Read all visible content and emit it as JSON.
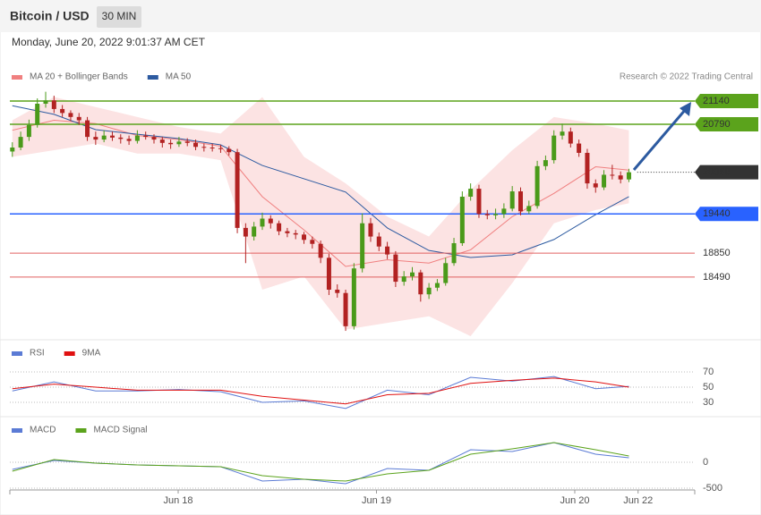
{
  "header": {
    "title": "Bitcoin / USD",
    "interval": "30 MIN",
    "datetime": "Monday, June 20, 2022 9:01:37 AM CET"
  },
  "chart_data": [
    {
      "type": "candlestick",
      "annotation": "Research © 2022 Trading Central",
      "up_color": "#4a9a1a",
      "down_color": "#b22222",
      "xlim": [
        -0.3,
        81.9
      ],
      "ylim": [
        17573,
        21719
      ],
      "candles": [
        [
          20380,
          20520,
          20300,
          20440
        ],
        [
          20440,
          20680,
          20400,
          20600
        ],
        [
          20600,
          20860,
          20540,
          20780
        ],
        [
          20780,
          21180,
          20740,
          21100
        ],
        [
          21100,
          21280,
          21040,
          21150
        ],
        [
          21150,
          21220,
          20960,
          21020
        ],
        [
          21020,
          21080,
          20900,
          20960
        ],
        [
          20960,
          21000,
          20840,
          20900
        ],
        [
          20900,
          20960,
          20780,
          20850
        ],
        [
          20850,
          20900,
          20540,
          20600
        ],
        [
          20600,
          20680,
          20480,
          20560
        ],
        [
          20560,
          20700,
          20520,
          20620
        ],
        [
          20620,
          20680,
          20540,
          20590
        ],
        [
          20590,
          20640,
          20500,
          20570
        ],
        [
          20570,
          20620,
          20480,
          20540
        ],
        [
          20540,
          20700,
          20500,
          20620
        ],
        [
          20620,
          20680,
          20560,
          20600
        ],
        [
          20600,
          20640,
          20500,
          20560
        ],
        [
          20560,
          20600,
          20440,
          20510
        ],
        [
          20510,
          20560,
          20420,
          20490
        ],
        [
          20490,
          20600,
          20450,
          20530
        ],
        [
          20530,
          20580,
          20460,
          20510
        ],
        [
          20510,
          20560,
          20400,
          20450
        ],
        [
          20450,
          20500,
          20380,
          20440
        ],
        [
          20440,
          20500,
          20380,
          20430
        ],
        [
          20430,
          20480,
          20360,
          20420
        ],
        [
          20420,
          20460,
          20320,
          20370
        ],
        [
          20370,
          20420,
          19150,
          19230
        ],
        [
          19230,
          19300,
          18700,
          19100
        ],
        [
          19100,
          19320,
          19040,
          19250
        ],
        [
          19250,
          19460,
          19200,
          19370
        ],
        [
          19370,
          19420,
          19220,
          19300
        ],
        [
          19300,
          19340,
          19120,
          19180
        ],
        [
          19180,
          19230,
          19090,
          19150
        ],
        [
          19150,
          19200,
          19060,
          19130
        ],
        [
          19130,
          19170,
          18990,
          19050
        ],
        [
          19050,
          19100,
          18920,
          18990
        ],
        [
          18990,
          19040,
          18700,
          18780
        ],
        [
          18780,
          18840,
          18220,
          18300
        ],
        [
          18300,
          18380,
          18180,
          18250
        ],
        [
          18250,
          18300,
          17680,
          17750
        ],
        [
          17750,
          18700,
          17700,
          18620
        ],
        [
          18620,
          19450,
          18560,
          19300
        ],
        [
          19300,
          19380,
          19020,
          19100
        ],
        [
          19100,
          19160,
          18880,
          18950
        ],
        [
          18950,
          19020,
          18760,
          18830
        ],
        [
          18830,
          18880,
          18340,
          18420
        ],
        [
          18420,
          18580,
          18360,
          18500
        ],
        [
          18500,
          18640,
          18440,
          18560
        ],
        [
          18560,
          18600,
          18120,
          18230
        ],
        [
          18230,
          18400,
          18160,
          18330
        ],
        [
          18330,
          18460,
          18280,
          18400
        ],
        [
          18400,
          18780,
          18360,
          18700
        ],
        [
          18700,
          19080,
          18660,
          19000
        ],
        [
          19000,
          19780,
          18960,
          19700
        ],
        [
          19700,
          19900,
          19640,
          19820
        ],
        [
          19820,
          19880,
          19380,
          19440
        ],
        [
          19440,
          19500,
          19360,
          19420
        ],
        [
          19420,
          19520,
          19360,
          19440
        ],
        [
          19440,
          19600,
          19380,
          19520
        ],
        [
          19520,
          19860,
          19480,
          19780
        ],
        [
          19780,
          19840,
          19420,
          19480
        ],
        [
          19480,
          19640,
          19440,
          19560
        ],
        [
          19560,
          20240,
          19520,
          20160
        ],
        [
          20160,
          20320,
          20100,
          20250
        ],
        [
          20250,
          20700,
          20200,
          20620
        ],
        [
          20620,
          20800,
          20560,
          20680
        ],
        [
          20680,
          20740,
          20440,
          20500
        ],
        [
          20500,
          20560,
          20300,
          20360
        ],
        [
          20360,
          20420,
          19820,
          19900
        ],
        [
          19900,
          19960,
          19760,
          19840
        ],
        [
          19840,
          20100,
          19800,
          20030
        ],
        [
          20030,
          20180,
          19960,
          20020
        ],
        [
          20020,
          20080,
          19900,
          19960
        ],
        [
          19960,
          20120,
          19920,
          20068
        ]
      ],
      "x": [
        0,
        5,
        10,
        15,
        20,
        25,
        30,
        35,
        40,
        45,
        50,
        55,
        60,
        65,
        70,
        74
      ],
      "series": [
        {
          "name": "MA 20 + Bollinger Bands",
          "color": "#f08080",
          "values": [
            20700,
            20850,
            20800,
            20620,
            20560,
            20460,
            19700,
            19200,
            18650,
            18750,
            18700,
            18900,
            19400,
            19750,
            20150,
            20100
          ],
          "upper": [
            20850,
            21200,
            21050,
            20900,
            20750,
            20650,
            21200,
            20300,
            19900,
            19400,
            19100,
            19800,
            20400,
            20900,
            20800,
            20700
          ],
          "lower": [
            20300,
            20400,
            20500,
            20350,
            20350,
            20250,
            18300,
            18500,
            17700,
            17800,
            17900,
            17600,
            18400,
            19300,
            19500,
            19600
          ]
        },
        {
          "name": "MA 50",
          "color": "#2c5aa0",
          "values": [
            21070,
            20940,
            20710,
            20640,
            20575,
            20480,
            20170,
            19970,
            19770,
            19230,
            18890,
            18785,
            18825,
            19055,
            19430,
            19700
          ]
        }
      ],
      "levels": [
        {
          "value": 21140,
          "color": "#5ba31c",
          "box": true,
          "line_style": "solid"
        },
        {
          "value": 20790,
          "color": "#5ba31c",
          "box": true,
          "line_style": "solid"
        },
        {
          "value": 20068,
          "color": "#333333",
          "box": true,
          "line_style": "dotted"
        },
        {
          "value": 19440,
          "color": "#2962ff",
          "box": true,
          "line_style": "solid"
        },
        {
          "value": 18850,
          "color": "#e06060",
          "box": false,
          "line_style": "solid"
        },
        {
          "value": 18490,
          "color": "#e06060",
          "box": false,
          "line_style": "solid"
        }
      ]
    },
    {
      "type": "line",
      "xlim": [
        -0.3,
        81.9
      ],
      "ylim": [
        12.4,
        106.5
      ],
      "yticks": [
        70,
        50,
        30
      ],
      "grid": true,
      "x": [
        0,
        5,
        10,
        15,
        20,
        25,
        30,
        35,
        40,
        45,
        50,
        55,
        60,
        65,
        70,
        74
      ],
      "series": [
        {
          "name": "RSI",
          "color": "#5b7bd5",
          "values": [
            45,
            57,
            45,
            45,
            47,
            44,
            30,
            32,
            22,
            46,
            40,
            63,
            58,
            64,
            48,
            51
          ]
        },
        {
          "name": "9MA",
          "color": "#e01010",
          "values": [
            48,
            54,
            50,
            46,
            46,
            46,
            38,
            33,
            28,
            40,
            42,
            55,
            59,
            62,
            57,
            50
          ]
        }
      ]
    },
    {
      "type": "line",
      "xlim": [
        -0.3,
        81.9
      ],
      "ylim": [
        -603,
        810
      ],
      "yticks": [
        0,
        -500
      ],
      "grid": true,
      "x": [
        0,
        5,
        10,
        15,
        20,
        25,
        30,
        35,
        40,
        45,
        50,
        55,
        60,
        65,
        70,
        74
      ],
      "xticks": [
        {
          "value": 19.9,
          "label": "Jun 18"
        },
        {
          "value": 43.7,
          "label": "Jun 19"
        },
        {
          "value": 67.5,
          "label": "Jun 20"
        },
        {
          "value": 75.1,
          "label": "Jun 22"
        }
      ],
      "series": [
        {
          "name": "MACD",
          "color": "#5b7bd5",
          "values": [
            -138,
            34,
            -17,
            -52,
            -69,
            -86,
            -362,
            -328,
            -414,
            -121,
            -155,
            241,
            207,
            379,
            155,
            86
          ]
        },
        {
          "name": "MACD Signal",
          "color": "#5ba31c",
          "values": [
            -172,
            52,
            -17,
            -52,
            -69,
            -86,
            -259,
            -328,
            -362,
            -224,
            -155,
            155,
            259,
            379,
            241,
            121
          ]
        }
      ]
    }
  ]
}
